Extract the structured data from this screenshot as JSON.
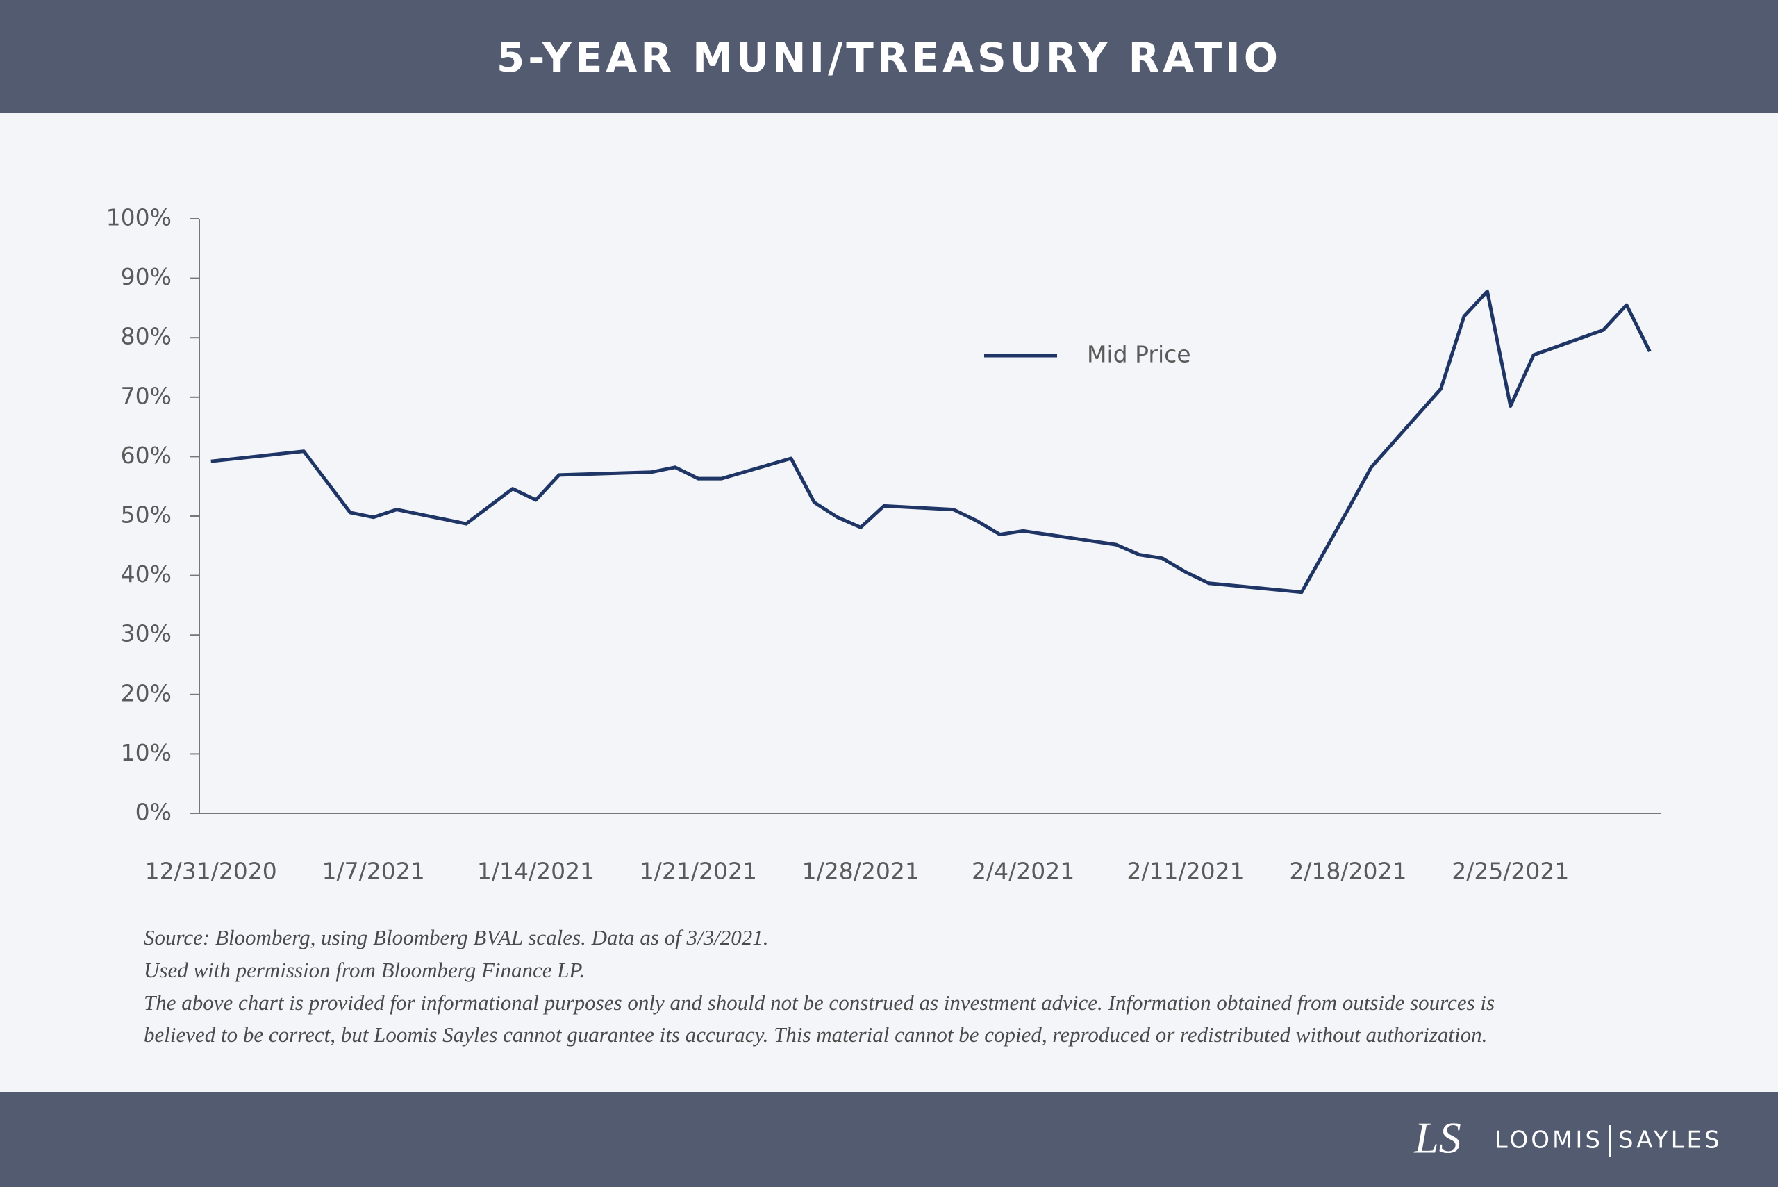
{
  "chart_data": {
    "type": "line",
    "title": "5-YEAR MUNI/TREASURY RATIO",
    "x": [
      "2020-12-31",
      "2021-01-04",
      "2021-01-06",
      "2021-01-07",
      "2021-01-08",
      "2021-01-11",
      "2021-01-13",
      "2021-01-14",
      "2021-01-15",
      "2021-01-19",
      "2021-01-20",
      "2021-01-21",
      "2021-01-22",
      "2021-01-25",
      "2021-01-26",
      "2021-01-27",
      "2021-01-28",
      "2021-01-29",
      "2021-02-01",
      "2021-02-02",
      "2021-02-03",
      "2021-02-04",
      "2021-02-08",
      "2021-02-09",
      "2021-02-10",
      "2021-02-11",
      "2021-02-12",
      "2021-02-16",
      "2021-02-18",
      "2021-02-19",
      "2021-02-22",
      "2021-02-23",
      "2021-02-24",
      "2021-02-25",
      "2021-02-26",
      "2021-03-01",
      "2021-03-02",
      "2021-03-03"
    ],
    "series": [
      {
        "name": "Mid Price",
        "color": "#1f3566",
        "values": [
          59.2,
          60.9,
          50.6,
          49.8,
          51.1,
          48.7,
          54.6,
          52.7,
          56.9,
          57.4,
          58.2,
          56.3,
          56.3,
          59.7,
          52.3,
          49.8,
          48.1,
          51.7,
          51.1,
          49.2,
          46.9,
          47.5,
          45.2,
          43.5,
          42.9,
          40.6,
          38.7,
          37.2,
          51.1,
          58.2,
          71.4,
          83.6,
          87.8,
          68.5,
          77.1,
          81.3,
          85.5,
          77.7
        ]
      }
    ],
    "xlim": [
      "2020-12-31",
      "2021-03-03"
    ],
    "xticks": [
      {
        "value": "2020-12-31",
        "label": "12/31/2020"
      },
      {
        "value": "2021-01-07",
        "label": "1/7/2021"
      },
      {
        "value": "2021-01-14",
        "label": "1/14/2021"
      },
      {
        "value": "2021-01-21",
        "label": "1/21/2021"
      },
      {
        "value": "2021-01-28",
        "label": "1/28/2021"
      },
      {
        "value": "2021-02-04",
        "label": "2/4/2021"
      },
      {
        "value": "2021-02-11",
        "label": "2/11/2021"
      },
      {
        "value": "2021-02-18",
        "label": "2/18/2021"
      },
      {
        "value": "2021-02-25",
        "label": "2/25/2021"
      }
    ],
    "ylim": [
      0,
      100
    ],
    "yticks": [
      {
        "value": 0,
        "label": "0%"
      },
      {
        "value": 10,
        "label": "10%"
      },
      {
        "value": 20,
        "label": "20%"
      },
      {
        "value": 30,
        "label": "30%"
      },
      {
        "value": 40,
        "label": "40%"
      },
      {
        "value": 50,
        "label": "50%"
      },
      {
        "value": 60,
        "label": "60%"
      },
      {
        "value": 70,
        "label": "70%"
      },
      {
        "value": 80,
        "label": "80%"
      },
      {
        "value": 90,
        "label": "90%"
      },
      {
        "value": 100,
        "label": "100%"
      }
    ],
    "grid": false,
    "legend": "top-center"
  },
  "notes": [
    "Source: Bloomberg, using Bloomberg BVAL scales. Data as of 3/3/2021.",
    "Used with permission from Bloomberg Finance LP.",
    "The above chart is provided for informational purposes only and should not be construed as investment advice. Information obtained from outside sources is",
    "believed to be correct, but Loomis Sayles cannot guarantee its accuracy. This material cannot be copied, reproduced or redistributed without authorization."
  ],
  "footer": {
    "monogram": "LS",
    "brand": [
      "LOOMIS",
      "SAYLES"
    ]
  }
}
